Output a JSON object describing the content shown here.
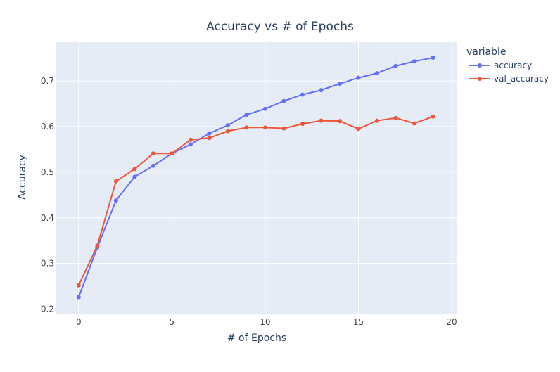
{
  "chart_data": {
    "type": "line",
    "title": "Accuracy vs # of Epochs",
    "xlabel": "# of Epochs",
    "ylabel": "Accuracy",
    "xlim": [
      -1.2,
      20.3
    ],
    "ylim": [
      0.19,
      0.785
    ],
    "x_ticks": [
      0,
      5,
      10,
      15,
      20
    ],
    "y_ticks": [
      0.2,
      0.3,
      0.4,
      0.5,
      0.6,
      0.7
    ],
    "grid": true,
    "legend": {
      "title": "variable",
      "placement": "right"
    },
    "x": [
      0,
      1,
      2,
      3,
      4,
      5,
      6,
      7,
      8,
      9,
      10,
      11,
      12,
      13,
      14,
      15,
      16,
      17,
      18,
      19
    ],
    "series": [
      {
        "name": "accuracy",
        "color": "#636efa",
        "values": [
          0.226,
          0.335,
          0.438,
          0.49,
          0.514,
          0.541,
          0.561,
          0.585,
          0.603,
          0.626,
          0.639,
          0.656,
          0.67,
          0.68,
          0.694,
          0.707,
          0.717,
          0.733,
          0.743,
          0.751
        ]
      },
      {
        "name": "val_accuracy",
        "color": "#ef553b",
        "values": [
          0.252,
          0.339,
          0.48,
          0.507,
          0.541,
          0.541,
          0.571,
          0.575,
          0.59,
          0.598,
          0.598,
          0.596,
          0.606,
          0.613,
          0.612,
          0.595,
          0.613,
          0.619,
          0.607,
          0.622
        ]
      }
    ]
  },
  "style": {
    "plot_bg": "#e5ecf6",
    "grid_color": "#ffffff",
    "text_color": "#2a3f5f",
    "tick_color": "#444444"
  }
}
